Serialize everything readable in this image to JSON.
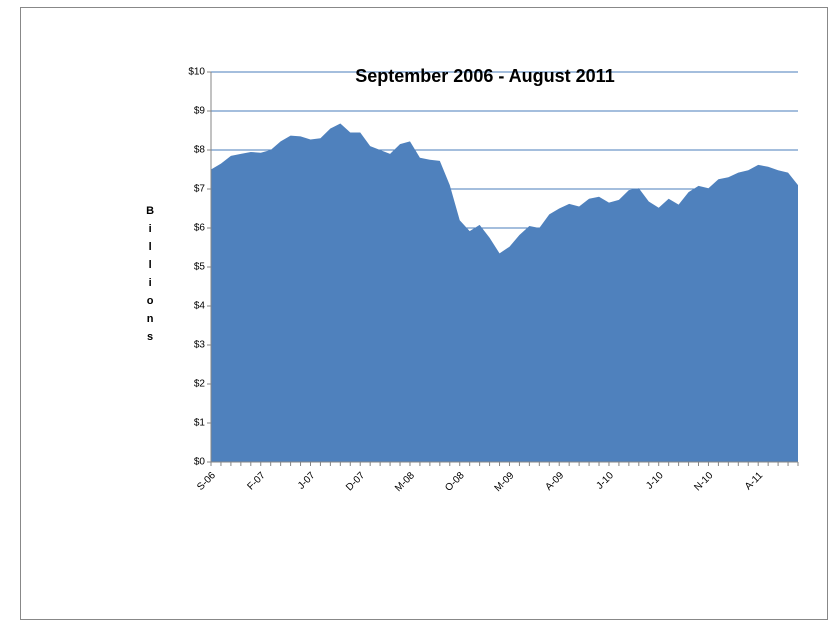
{
  "chart_data": {
    "type": "area",
    "title": "September 2006 - August 2011",
    "y_label": "Billions",
    "categories": [
      "S-06",
      null,
      null,
      null,
      null,
      "F-07",
      null,
      null,
      null,
      null,
      "J-07",
      null,
      null,
      null,
      null,
      "D-07",
      null,
      null,
      null,
      null,
      "M-08",
      null,
      null,
      null,
      null,
      "O-08",
      null,
      null,
      null,
      null,
      "M-09",
      null,
      null,
      null,
      null,
      "A-09",
      null,
      null,
      null,
      null,
      "J-10",
      null,
      null,
      null,
      null,
      "J-10",
      null,
      null,
      null,
      null,
      "N-10",
      null,
      null,
      null,
      null,
      "A-11",
      null,
      null,
      null,
      null
    ],
    "values": [
      7.5,
      7.65,
      7.85,
      7.9,
      7.95,
      7.93,
      8.0,
      8.22,
      8.37,
      8.35,
      8.27,
      8.3,
      8.55,
      8.68,
      8.45,
      8.45,
      8.1,
      8.0,
      7.9,
      8.15,
      8.22,
      7.8,
      7.75,
      7.72,
      7.1,
      6.2,
      5.92,
      6.08,
      5.75,
      5.35,
      5.52,
      5.82,
      6.05,
      6.0,
      6.35,
      6.5,
      6.62,
      6.55,
      6.75,
      6.8,
      6.65,
      6.72,
      6.97,
      7.02,
      6.68,
      6.52,
      6.75,
      6.6,
      6.92,
      7.08,
      7.02,
      7.25,
      7.3,
      7.42,
      7.48,
      7.62,
      7.57,
      7.48,
      7.42,
      7.1
    ],
    "color": "#4f81bd",
    "ylim": [
      0,
      10
    ],
    "yticks": [
      {
        "value": 0,
        "label": "$0"
      },
      {
        "value": 1,
        "label": "$1"
      },
      {
        "value": 2,
        "label": "$2"
      },
      {
        "value": 3,
        "label": "$3"
      },
      {
        "value": 4,
        "label": "$4"
      },
      {
        "value": 5,
        "label": "$5"
      },
      {
        "value": 6,
        "label": "$6"
      },
      {
        "value": 7,
        "label": "$7"
      },
      {
        "value": 8,
        "label": "$8"
      },
      {
        "value": 9,
        "label": "$9"
      },
      {
        "value": 10,
        "label": "$10"
      }
    ],
    "grid": true
  }
}
